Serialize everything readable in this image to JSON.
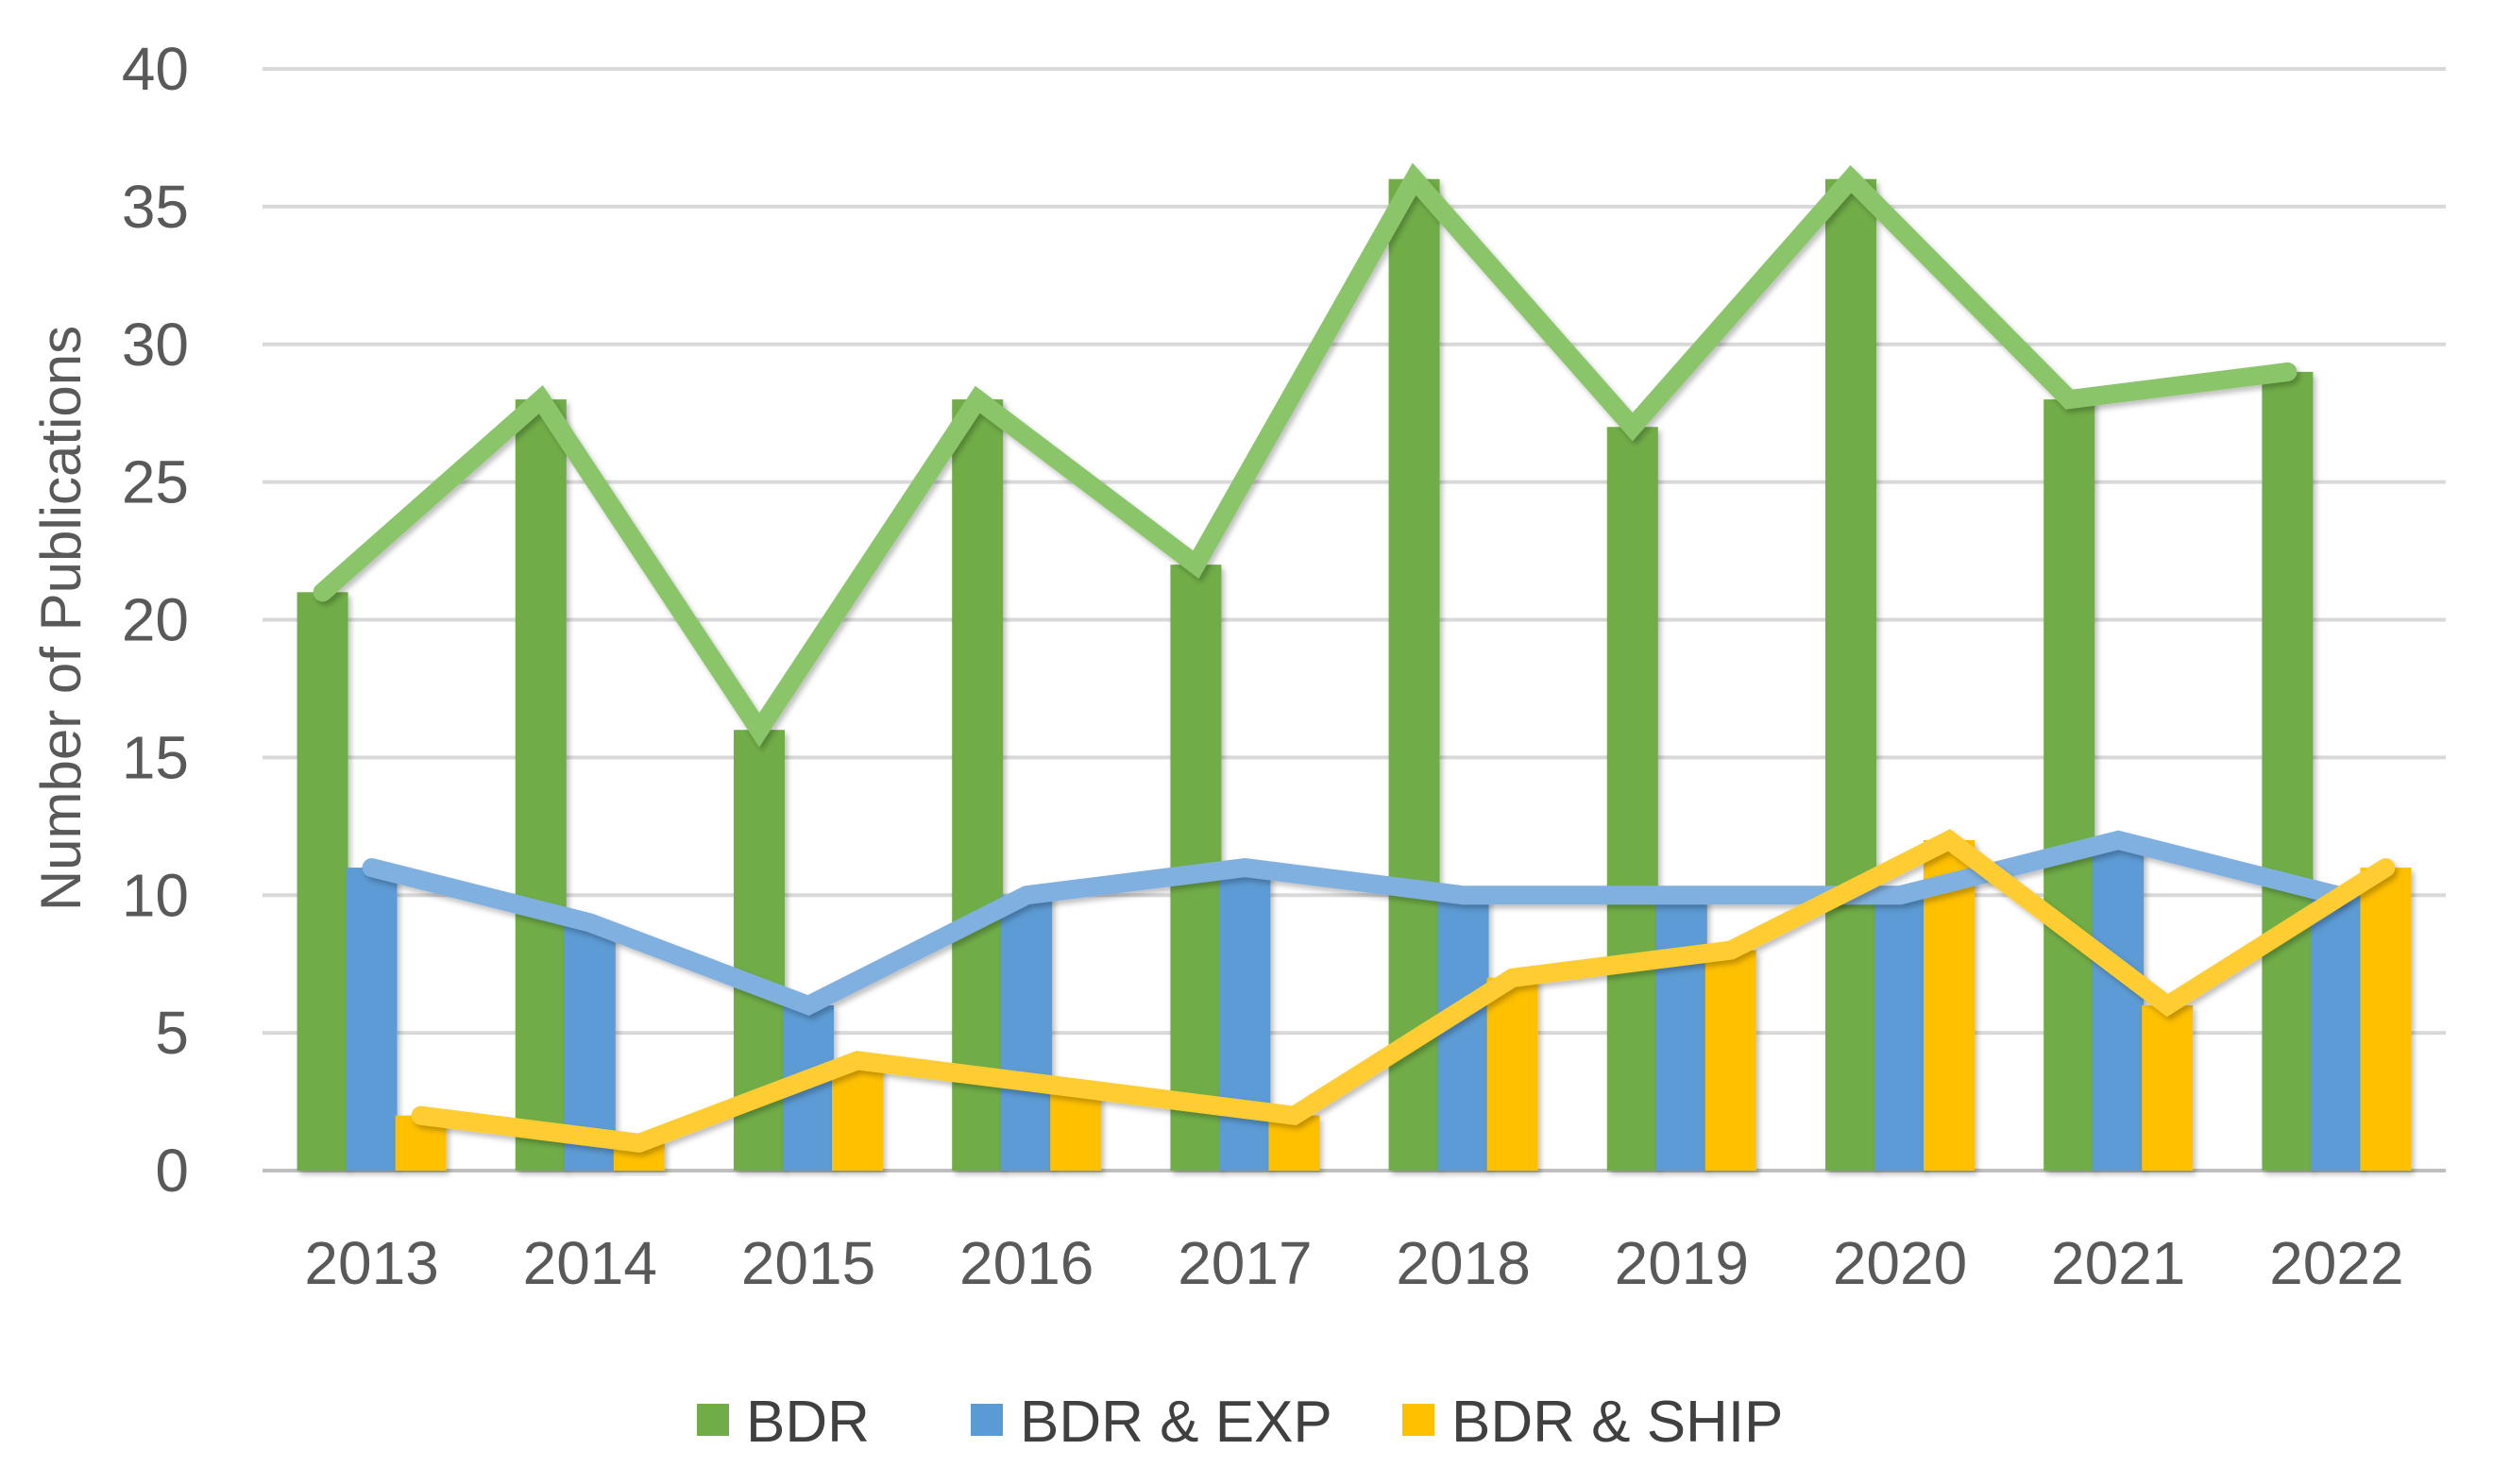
{
  "chart_data": {
    "type": "bar",
    "title": "",
    "xlabel": "",
    "ylabel": "Number of Publications",
    "ylim": [
      0,
      40
    ],
    "yticks": [
      "0",
      "5",
      "10",
      "15",
      "20",
      "25",
      "30",
      "35",
      "40"
    ],
    "grid": true,
    "legend_position": "bottom",
    "categories": [
      "2013",
      "2014",
      "2015",
      "2016",
      "2017",
      "2018",
      "2019",
      "2020",
      "2021",
      "2022"
    ],
    "series": [
      {
        "name": "BDR",
        "color": "#70AD47",
        "values": [
          21,
          28,
          16,
          28,
          22,
          36,
          27,
          36,
          28,
          29
        ]
      },
      {
        "name": "BDR & EXP",
        "color": "#5B9BD5",
        "values": [
          11,
          9,
          6,
          10,
          11,
          10,
          10,
          10,
          12,
          10
        ]
      },
      {
        "name": "BDR & SHIP",
        "color": "#FFC000",
        "values": [
          2,
          1,
          4,
          3,
          2,
          7,
          8,
          12,
          6,
          11
        ]
      }
    ],
    "overlay_lines": "each series is also drawn as a trend line connecting its values"
  }
}
